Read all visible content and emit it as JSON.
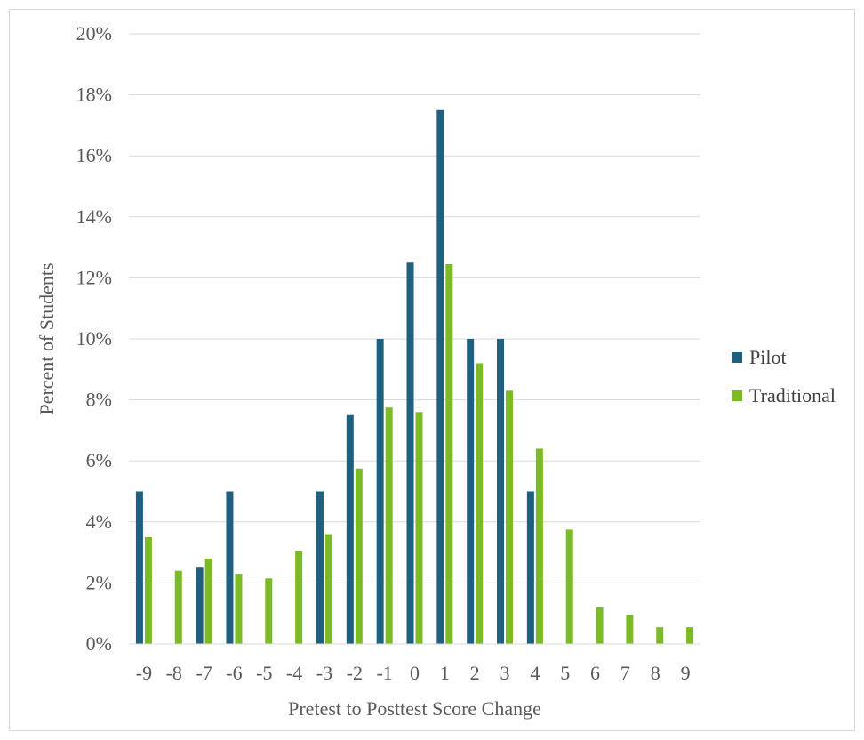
{
  "chart_data": {
    "type": "bar",
    "title": "",
    "xlabel": "Pretest to Posttest Score Change",
    "ylabel": "Percent of Students",
    "categories": [
      "-9",
      "-8",
      "-7",
      "-6",
      "-5",
      "-4",
      "-3",
      "-2",
      "-1",
      "0",
      "1",
      "2",
      "3",
      "4",
      "5",
      "6",
      "7",
      "8",
      "9"
    ],
    "ylim": [
      0,
      20
    ],
    "yticks": [
      "0%",
      "2%",
      "4%",
      "6%",
      "8%",
      "10%",
      "12%",
      "14%",
      "16%",
      "18%",
      "20%"
    ],
    "ytick_values": [
      0,
      2,
      4,
      6,
      8,
      10,
      12,
      14,
      16,
      18,
      20
    ],
    "grid": true,
    "legend": "right",
    "series": [
      {
        "name": "Pilot",
        "color": "#1f5f7f",
        "values": [
          5,
          0,
          2.5,
          5,
          0,
          0,
          5,
          7.5,
          10,
          12.5,
          17.5,
          10,
          10,
          5,
          0,
          0,
          0,
          0,
          0
        ]
      },
      {
        "name": "Traditional",
        "color": "#7cbb26",
        "values": [
          3.5,
          2.4,
          2.8,
          2.3,
          2.15,
          3.05,
          3.6,
          5.75,
          7.75,
          7.6,
          12.45,
          9.2,
          8.3,
          6.4,
          3.75,
          1.2,
          0.95,
          0.55,
          0.55
        ]
      }
    ]
  }
}
